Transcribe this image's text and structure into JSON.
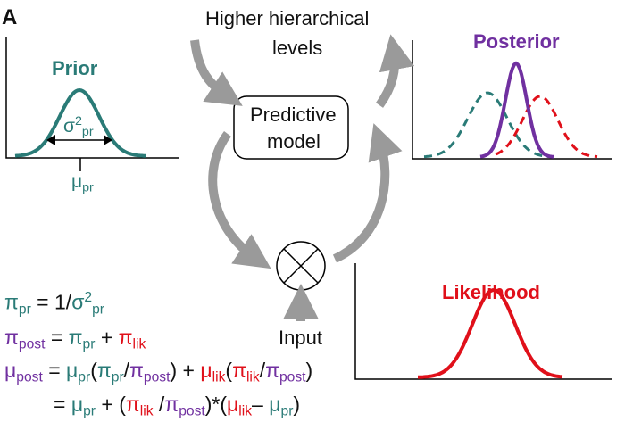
{
  "panel_label": "A",
  "top_label_line1": "Higher hierarchical",
  "top_label_line2": "levels",
  "model_label_line1": "Predictive",
  "model_label_line2": "model",
  "input_label": "Input",
  "prior": {
    "title": "Prior",
    "sigma": "σ",
    "sigma_sup": "2",
    "sigma_sub": "pr",
    "mu": "μ",
    "mu_sub": "pr"
  },
  "posterior": {
    "title": "Posterior"
  },
  "likelihood": {
    "title": "Likelihood"
  },
  "symbols": {
    "pi": "π",
    "mu": "μ",
    "sigma": "σ",
    "pr": "pr",
    "post": "post",
    "lik": "lik",
    "two": "2"
  },
  "equations": {
    "eq1_rhs": "= 1/",
    "eq2_eq": "=",
    "eq2_plus": "+",
    "eq3_eq": "=",
    "open": "(",
    "slash": "/",
    "close": ")",
    "plus": "+",
    "star": ")*(",
    "minus": "–"
  },
  "colors": {
    "prior": "#2a7b77",
    "posterior": "#7030a0",
    "likelihood": "#e0101a",
    "arrow": "#9a9a9a"
  }
}
